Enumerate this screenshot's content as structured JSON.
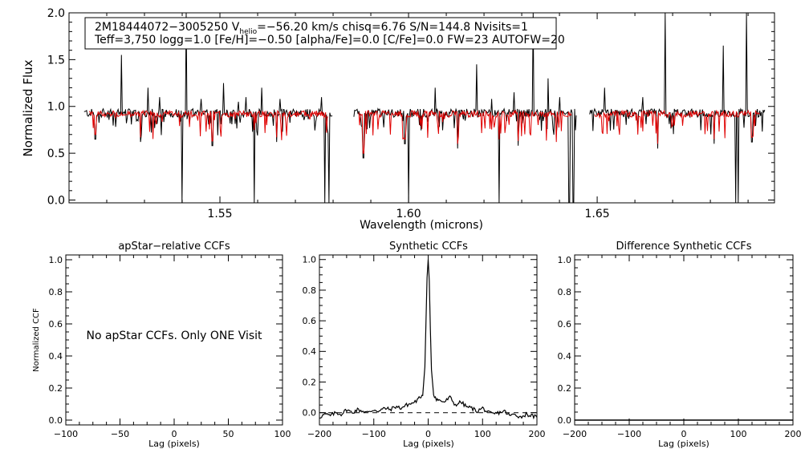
{
  "colors": {
    "axis": "#000000",
    "observed": "#000000",
    "model": "#e00000",
    "background": "#ffffff"
  },
  "chart_data": [
    {
      "id": "spectrum",
      "type": "line",
      "title": "",
      "xlabel": "Wavelength (microns)",
      "ylabel": "Normalized Flux",
      "xlim": [
        1.51,
        1.697
      ],
      "ylim": [
        -0.03,
        2.0
      ],
      "xticks": [
        1.55,
        1.6,
        1.65
      ],
      "xtick_labels": [
        "1.55",
        "1.60",
        "1.65"
      ],
      "yticks": [
        0.0,
        0.5,
        1.0,
        1.5,
        2.0
      ],
      "ytick_labels": [
        "0.0",
        "0.5",
        "1.0",
        "1.5",
        "2.0"
      ],
      "legend": {
        "line1_prefix": "2M18444072−3005250  V",
        "line1_sub": "helio",
        "line1_suffix": "=−56.20 km/s  chisq=6.76  S/N=144.8  Nvisits=1",
        "line2": "Teff=3,750 logg=1.0 [Fe/H]=−0.50 [alpha/Fe]=0.0 [C/Fe]=0.0 FW=23 AUTOFW=20"
      },
      "segments": [
        [
          1.514,
          1.58
        ],
        [
          1.5855,
          1.6445
        ],
        [
          1.648,
          1.6945
        ]
      ],
      "series": [
        {
          "name": "Observed spectrum",
          "color": "#000000",
          "continuum": 0.93
        },
        {
          "name": "Synthetic model",
          "color": "#e00000",
          "continuum": 0.92
        }
      ],
      "features": {
        "spikes_up": [
          1.524,
          1.531,
          1.534,
          1.541,
          1.545,
          1.551,
          1.555,
          1.557,
          1.561,
          1.566,
          1.577,
          1.607,
          1.618,
          1.622,
          1.628,
          1.633,
          1.637,
          1.64,
          1.652,
          1.662,
          1.668,
          1.6835,
          1.6895
        ],
        "spike_heights": [
          1.55,
          1.2,
          1.1,
          2.0,
          1.08,
          1.25,
          1.05,
          1.1,
          1.2,
          1.08,
          1.1,
          1.2,
          1.45,
          1.08,
          1.15,
          2.0,
          1.3,
          1.1,
          1.2,
          1.1,
          2.0,
          1.65,
          2.0
        ],
        "dips": [
          1.5399,
          1.5592,
          1.5779,
          1.5789,
          1.6001,
          1.6241,
          1.6426,
          1.6437,
          1.6873,
          1.6868
        ],
        "dip_depths": [
          -0.05,
          -0.05,
          -0.05,
          -0.05,
          -0.05,
          -0.05,
          -0.05,
          -0.05,
          -0.05,
          -0.05
        ],
        "moderate_dips": [
          1.517,
          1.529,
          1.548,
          1.565,
          1.588,
          1.599,
          1.613,
          1.629,
          1.652,
          1.666,
          1.681,
          1.691
        ],
        "moderate_depths": [
          0.65,
          0.62,
          0.58,
          0.62,
          0.45,
          0.6,
          0.55,
          0.58,
          0.5,
          0.55,
          0.6,
          0.62
        ]
      }
    },
    {
      "id": "apstar-ccf",
      "type": "line",
      "title": "apStar−relative CCFs",
      "xlabel": "Lag (pixels)",
      "ylabel": "Normalized CCF",
      "xlim": [
        -100,
        100
      ],
      "ylim": [
        -0.03,
        1.03
      ],
      "xticks": [
        -100,
        -50,
        0,
        50,
        100
      ],
      "xtick_labels": [
        "−100",
        "−50",
        "0",
        "50",
        "100"
      ],
      "yticks": [
        0.0,
        0.2,
        0.4,
        0.6,
        0.8,
        1.0
      ],
      "ytick_labels": [
        "0.0",
        "0.2",
        "0.4",
        "0.6",
        "0.8",
        "1.0"
      ],
      "annotation": "No apStar CCFs.  Only ONE Visit",
      "series": []
    },
    {
      "id": "synthetic-ccf",
      "type": "line",
      "title": "Synthetic CCFs",
      "xlabel": "Lag (pixels)",
      "ylabel": "",
      "xlim": [
        -200,
        200
      ],
      "ylim": [
        -0.08,
        1.03
      ],
      "xticks": [
        -200,
        -100,
        0,
        100,
        200
      ],
      "xtick_labels": [
        "−200",
        "−100",
        "0",
        "100",
        "200"
      ],
      "yticks": [
        0.0,
        0.2,
        0.4,
        0.6,
        0.8,
        1.0
      ],
      "ytick_labels": [
        "0.0",
        "0.2",
        "0.4",
        "0.6",
        "0.8",
        "1.0"
      ],
      "series": [
        {
          "name": "CCF",
          "x": [
            -200,
            -190,
            -180,
            -170,
            -160,
            -150,
            -140,
            -130,
            -120,
            -110,
            -100,
            -90,
            -80,
            -70,
            -60,
            -50,
            -40,
            -30,
            -20,
            -15,
            -10,
            -6,
            -4,
            -2,
            0,
            2,
            4,
            6,
            10,
            15,
            20,
            30,
            40,
            50,
            60,
            70,
            80,
            90,
            100,
            110,
            120,
            130,
            140,
            150,
            160,
            170,
            180,
            190,
            200
          ],
          "y": [
            -0.03,
            -0.01,
            -0.02,
            0.0,
            -0.01,
            0.02,
            0.0,
            0.02,
            0.01,
            0.0,
            0.02,
            0.01,
            0.03,
            0.02,
            0.04,
            0.03,
            0.05,
            0.06,
            0.08,
            0.1,
            0.12,
            0.3,
            0.6,
            0.88,
            1.0,
            0.86,
            0.55,
            0.28,
            0.12,
            0.09,
            0.08,
            0.07,
            0.1,
            0.05,
            0.07,
            0.04,
            0.03,
            0.01,
            0.03,
            0.0,
            -0.01,
            0.0,
            0.01,
            -0.02,
            -0.01,
            -0.03,
            -0.01,
            -0.02,
            -0.03
          ]
        },
        {
          "name": "Zero level",
          "style": "dashed",
          "y_value": 0.0
        }
      ]
    },
    {
      "id": "difference-ccf",
      "type": "line",
      "title": "Difference Synthetic CCFs",
      "xlabel": "Lag (pixels)",
      "ylabel": "",
      "xlim": [
        -200,
        200
      ],
      "ylim": [
        -0.03,
        1.03
      ],
      "xticks": [
        -200,
        -100,
        0,
        100,
        200
      ],
      "xtick_labels": [
        "−200",
        "−100",
        "0",
        "100",
        "200"
      ],
      "yticks": [
        0.0,
        0.2,
        0.4,
        0.6,
        0.8,
        1.0
      ],
      "ytick_labels": [
        "0.0",
        "0.2",
        "0.4",
        "0.6",
        "0.8",
        "1.0"
      ],
      "series": [
        {
          "name": "Difference CCF",
          "x": [
            -200,
            200
          ],
          "y": [
            0.0,
            0.0
          ]
        }
      ]
    }
  ]
}
